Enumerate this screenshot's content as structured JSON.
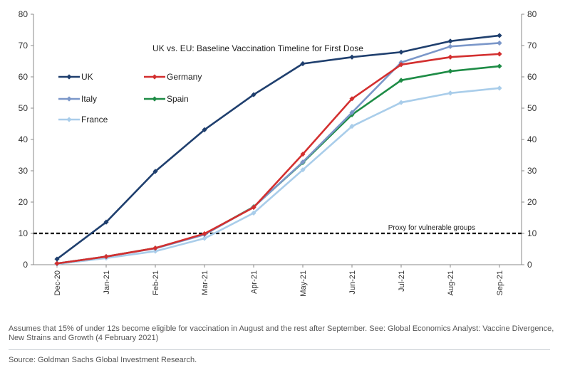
{
  "chart_data": {
    "type": "line",
    "title": "UK vs. EU: Baseline Vaccination Timeline for First Dose",
    "categories": [
      "Dec-20",
      "Jan-21",
      "Feb-21",
      "Mar-21",
      "Apr-21",
      "May-21",
      "Jun-21",
      "Jul-21",
      "Aug-21",
      "Sep-21"
    ],
    "ylim": [
      0,
      80
    ],
    "yticks": [
      0,
      10,
      20,
      30,
      40,
      50,
      60,
      70,
      80
    ],
    "grid": false,
    "legend_position": "top-left",
    "series": [
      {
        "name": "UK",
        "color": "#1f3f6e",
        "values": [
          1.8,
          13.6,
          29.8,
          43.1,
          54.3,
          64.2,
          66.3,
          67.9,
          71.4,
          73.2
        ]
      },
      {
        "name": "Germany",
        "color": "#d32f2f",
        "values": [
          0.4,
          2.6,
          5.3,
          9.9,
          18.3,
          35.3,
          53.0,
          63.9,
          66.3,
          67.3
        ]
      },
      {
        "name": "Italy",
        "color": "#7b97c9",
        "values": [
          0.4,
          2.6,
          5.2,
          9.6,
          18.4,
          32.8,
          48.6,
          64.6,
          69.7,
          70.8
        ]
      },
      {
        "name": "Spain",
        "color": "#1e8c46",
        "values": [
          0.4,
          2.6,
          5.3,
          9.7,
          18.5,
          32.6,
          47.9,
          58.9,
          61.8,
          63.4
        ]
      },
      {
        "name": "France",
        "color": "#a9cdea",
        "values": [
          0.2,
          2.1,
          4.3,
          8.4,
          16.5,
          30.3,
          44.2,
          51.8,
          54.8,
          56.4
        ]
      }
    ],
    "reference_line": {
      "value": 10,
      "label": "Proxy for vulnerable groups"
    }
  },
  "footnote": "Assumes that 15% of under 12s become eligible for vaccination in August and the rest after September. See: Global Economics Analyst: Vaccine Divergence, New Strains and Growth (4 February 2021)",
  "source": "Source: Goldman Sachs Global Investment Research."
}
